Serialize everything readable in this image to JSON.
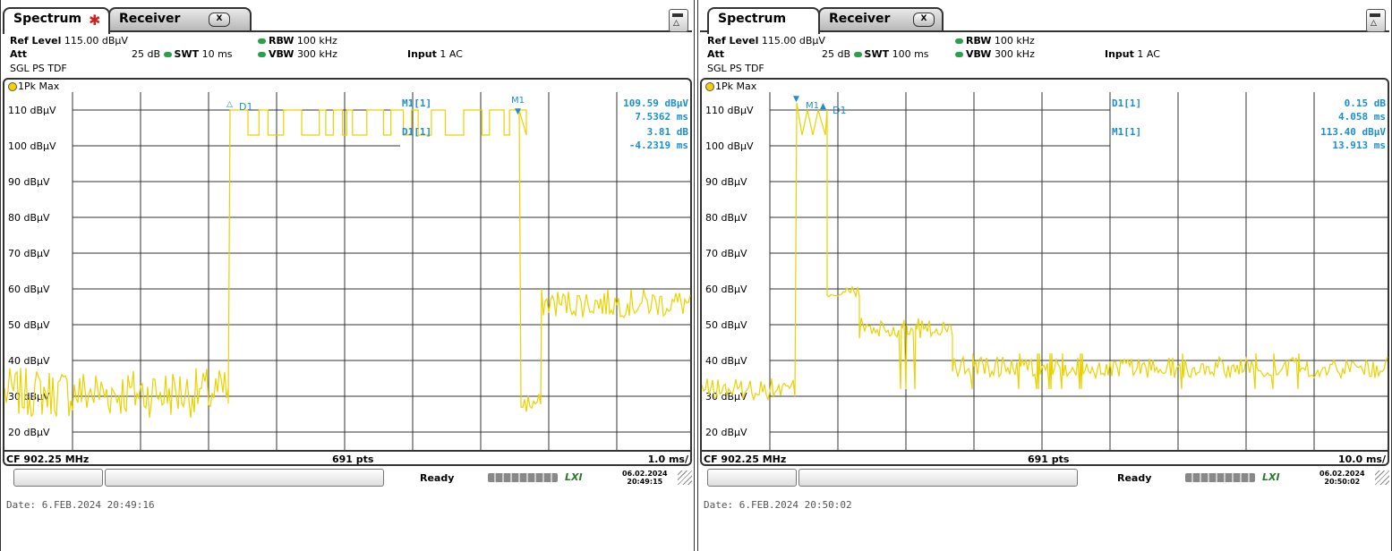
{
  "panels": [
    {
      "tabs": {
        "spectrum": "Spectrum",
        "receiver": "Receiver",
        "close": "X"
      },
      "params": {
        "ref_level_label": "Ref Level",
        "ref_level_value": "115.00 dBµV",
        "att_label": "Att",
        "att_value": "25 dB",
        "swt_label": "SWT",
        "swt_value": "10 ms",
        "rbw_label": "RBW",
        "rbw_value": "100 kHz",
        "vbw_label": "VBW",
        "vbw_value": "300 kHz",
        "input_label": "Input",
        "input_value": "1 AC",
        "mode": "SGL PS TDF"
      },
      "trace_label": "1Pk Max",
      "markers": [
        {
          "label": "M1[1]",
          "value1": "109.59 dBµV",
          "value2": "7.5362 ms"
        },
        {
          "label": "D1[1]",
          "value1": "3.81 dB",
          "value2": "-4.2319 ms"
        }
      ],
      "y_ticks": [
        "110 dBµV",
        "100 dBµV",
        "90 dBµV",
        "80 dBµV",
        "70 dBµV",
        "60 dBµV",
        "50 dBµV",
        "40 dBµV",
        "30 dBµV",
        "20 dBµV"
      ],
      "trace_markers": [
        "D1",
        "M1"
      ],
      "footer": {
        "cf": "CF 902.25 MHz",
        "pts": "691 pts",
        "scale": "1.0 ms/"
      },
      "status": {
        "ready": "Ready",
        "lxi": "LXI",
        "date": "06.02.2024",
        "time": "20:49:15"
      },
      "date_line": "Date: 6.FEB.2024  20:49:16"
    },
    {
      "tabs": {
        "spectrum": "Spectrum",
        "receiver": "Receiver",
        "close": "X"
      },
      "params": {
        "ref_level_label": "Ref Level",
        "ref_level_value": "115.00 dBµV",
        "att_label": "Att",
        "att_value": "25 dB",
        "swt_label": "SWT",
        "swt_value": "100 ms",
        "rbw_label": "RBW",
        "rbw_value": "100 kHz",
        "vbw_label": "VBW",
        "vbw_value": "300 kHz",
        "input_label": "Input",
        "input_value": "1 AC",
        "mode": "SGL PS TDF"
      },
      "trace_label": "1Pk Max",
      "markers": [
        {
          "label": "D1[1]",
          "value1": "0.15 dB",
          "value2": "4.058 ms"
        },
        {
          "label": "M1[1]",
          "value1": "113.40 dBµV",
          "value2": "13.913 ms"
        }
      ],
      "y_ticks": [
        "110 dBµV",
        "100 dBµV",
        "90 dBµV",
        "80 dBµV",
        "70 dBµV",
        "60 dBµV",
        "50 dBµV",
        "40 dBµV",
        "30 dBµV",
        "20 dBµV"
      ],
      "trace_markers": [
        "M1",
        "D1"
      ],
      "footer": {
        "cf": "CF 902.25 MHz",
        "pts": "691 pts",
        "scale": "10.0 ms/"
      },
      "status": {
        "ready": "Ready",
        "lxi": "LXI",
        "date": "06.02.2024",
        "time": "20:50:02"
      },
      "date_line": "Date: 6.FEB.2024  20:50:02"
    }
  ],
  "colors": {
    "trace": "#e8d200",
    "marker": "#1a8fd0",
    "grid": "#333333"
  }
}
